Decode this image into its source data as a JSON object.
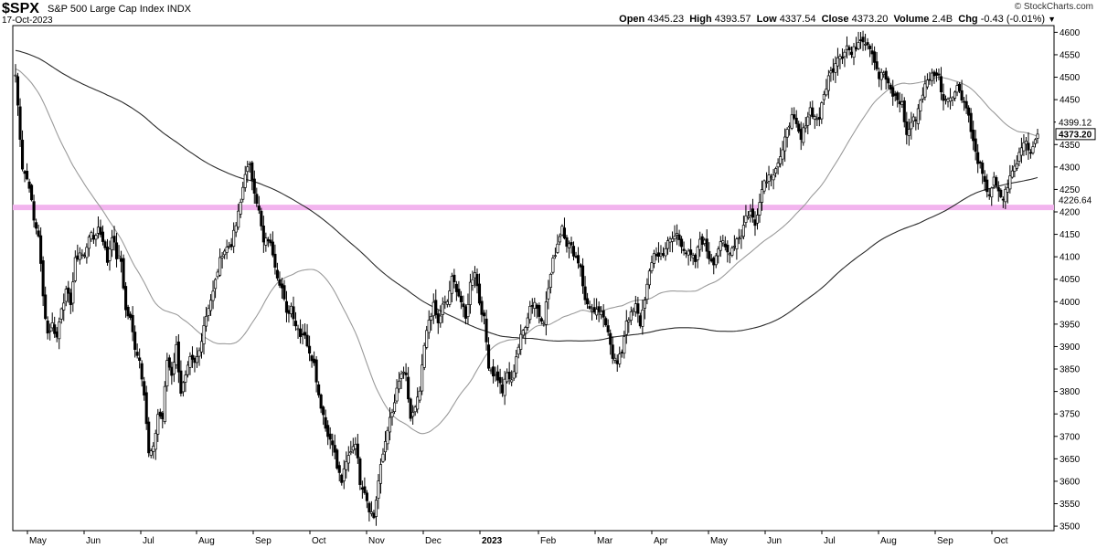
{
  "header": {
    "symbol": "$SPX",
    "name": "S&P 500 Large Cap Index",
    "exchange": "INDX",
    "date": "17-Oct-2023",
    "brand": "© StockCharts.com",
    "open_label": "Open",
    "open": "4345.23",
    "high_label": "High",
    "high": "4393.57",
    "low_label": "Low",
    "low": "4337.54",
    "close_label": "Close",
    "close": "4373.20",
    "volume_label": "Volume",
    "volume": "2.4B",
    "chg_label": "Chg",
    "chg": "-0.43 (-0.01%)",
    "chg_arrow": "▼"
  },
  "chart_data": {
    "type": "candlestick",
    "ylim": [
      3490,
      4615
    ],
    "y_ticks": [
      3500,
      3550,
      3600,
      3650,
      3700,
      3750,
      3800,
      3850,
      3900,
      3950,
      4000,
      4050,
      4100,
      4150,
      4200,
      4250,
      4300,
      4350,
      4400,
      4450,
      4500,
      4550,
      4600
    ],
    "x_labels": [
      "May",
      "Jun",
      "Jul",
      "Aug",
      "Sep",
      "Oct",
      "Nov",
      "Dec",
      "2023",
      "Feb",
      "Mar",
      "Apr",
      "May",
      "Jun",
      "Jul",
      "Aug",
      "Sep",
      "Oct"
    ],
    "x_label_bold": "2023",
    "horizontal_line": {
      "value": 4210,
      "color": "#f2b4ee"
    },
    "price_labels": [
      {
        "text": "4399.12",
        "value": 4399.12,
        "style": "plain"
      },
      {
        "text": "4373.20",
        "value": 4373.2,
        "style": "boxed"
      },
      {
        "text": "4226.64",
        "value": 4226.64,
        "style": "plain"
      }
    ],
    "series": [
      {
        "kind": "price",
        "color": "#000000",
        "points": [
          [
            0,
            4505
          ],
          [
            3,
            4300
          ],
          [
            6,
            4260
          ],
          [
            8,
            4180
          ],
          [
            10,
            4150
          ],
          [
            12,
            4010
          ],
          [
            14,
            3930
          ],
          [
            16,
            3950
          ],
          [
            18,
            3920
          ],
          [
            20,
            3990
          ],
          [
            22,
            4020
          ],
          [
            24,
            4000
          ],
          [
            26,
            4090
          ],
          [
            28,
            4110
          ],
          [
            30,
            4100
          ],
          [
            32,
            4150
          ],
          [
            34,
            4140
          ],
          [
            36,
            4165
          ],
          [
            38,
            4140
          ],
          [
            40,
            4090
          ],
          [
            42,
            4150
          ],
          [
            44,
            4100
          ],
          [
            46,
            4090
          ],
          [
            48,
            3980
          ],
          [
            50,
            3960
          ],
          [
            52,
            3900
          ],
          [
            54,
            3870
          ],
          [
            56,
            3800
          ],
          [
            58,
            3660
          ],
          [
            60,
            3670
          ],
          [
            62,
            3750
          ],
          [
            64,
            3740
          ],
          [
            66,
            3870
          ],
          [
            68,
            3840
          ],
          [
            70,
            3900
          ],
          [
            72,
            3800
          ],
          [
            74,
            3830
          ],
          [
            76,
            3870
          ],
          [
            78,
            3860
          ],
          [
            80,
            3890
          ],
          [
            82,
            3950
          ],
          [
            84,
            3990
          ],
          [
            86,
            4020
          ],
          [
            88,
            4070
          ],
          [
            90,
            4110
          ],
          [
            92,
            4120
          ],
          [
            94,
            4130
          ],
          [
            96,
            4170
          ],
          [
            98,
            4220
          ],
          [
            100,
            4290
          ],
          [
            102,
            4300
          ],
          [
            104,
            4250
          ],
          [
            106,
            4200
          ],
          [
            108,
            4130
          ],
          [
            110,
            4140
          ],
          [
            112,
            4110
          ],
          [
            114,
            4060
          ],
          [
            116,
            4030
          ],
          [
            118,
            3970
          ],
          [
            120,
            3990
          ],
          [
            122,
            3950
          ],
          [
            124,
            3930
          ],
          [
            126,
            3930
          ],
          [
            128,
            3880
          ],
          [
            130,
            3870
          ],
          [
            132,
            3790
          ],
          [
            134,
            3750
          ],
          [
            136,
            3700
          ],
          [
            138,
            3690
          ],
          [
            140,
            3630
          ],
          [
            142,
            3600
          ],
          [
            144,
            3640
          ],
          [
            146,
            3670
          ],
          [
            148,
            3690
          ],
          [
            150,
            3600
          ],
          [
            152,
            3580
          ],
          [
            154,
            3540
          ],
          [
            156,
            3520
          ],
          [
            158,
            3600
          ],
          [
            160,
            3660
          ],
          [
            162,
            3720
          ],
          [
            164,
            3750
          ],
          [
            166,
            3800
          ],
          [
            168,
            3840
          ],
          [
            170,
            3830
          ],
          [
            172,
            3740
          ],
          [
            174,
            3760
          ],
          [
            176,
            3800
          ],
          [
            178,
            3900
          ],
          [
            180,
            3960
          ],
          [
            182,
            3990
          ],
          [
            184,
            3950
          ],
          [
            186,
            3990
          ],
          [
            188,
            4000
          ],
          [
            190,
            4050
          ],
          [
            192,
            4030
          ],
          [
            194,
            4000
          ],
          [
            196,
            3960
          ],
          [
            198,
            4040
          ],
          [
            200,
            4070
          ],
          [
            202,
            4000
          ],
          [
            204,
            3960
          ],
          [
            206,
            3860
          ],
          [
            208,
            3840
          ],
          [
            210,
            3830
          ],
          [
            212,
            3800
          ],
          [
            214,
            3840
          ],
          [
            216,
            3820
          ],
          [
            218,
            3880
          ],
          [
            220,
            3920
          ],
          [
            222,
            3950
          ],
          [
            224,
            3990
          ],
          [
            226,
            4000
          ],
          [
            228,
            3970
          ],
          [
            230,
            3960
          ],
          [
            232,
            4030
          ],
          [
            234,
            4090
          ],
          [
            236,
            4130
          ],
          [
            238,
            4170
          ],
          [
            240,
            4130
          ],
          [
            242,
            4120
          ],
          [
            244,
            4100
          ],
          [
            246,
            4080
          ],
          [
            248,
            4000
          ],
          [
            250,
            3990
          ],
          [
            252,
            3970
          ],
          [
            254,
            3980
          ],
          [
            256,
            3960
          ],
          [
            258,
            3940
          ],
          [
            260,
            3880
          ],
          [
            262,
            3860
          ],
          [
            264,
            3890
          ],
          [
            266,
            3960
          ],
          [
            268,
            3970
          ],
          [
            270,
            3990
          ],
          [
            272,
            3950
          ],
          [
            274,
            4010
          ],
          [
            276,
            4060
          ],
          [
            278,
            4110
          ],
          [
            280,
            4100
          ],
          [
            282,
            4110
          ],
          [
            284,
            4130
          ],
          [
            286,
            4140
          ],
          [
            288,
            4150
          ],
          [
            290,
            4130
          ],
          [
            292,
            4110
          ],
          [
            294,
            4100
          ],
          [
            296,
            4090
          ],
          [
            298,
            4140
          ],
          [
            300,
            4130
          ],
          [
            302,
            4100
          ],
          [
            304,
            4090
          ],
          [
            306,
            4120
          ],
          [
            308,
            4130
          ],
          [
            310,
            4110
          ],
          [
            312,
            4120
          ],
          [
            314,
            4140
          ],
          [
            316,
            4150
          ],
          [
            318,
            4190
          ],
          [
            320,
            4200
          ],
          [
            322,
            4170
          ],
          [
            324,
            4230
          ],
          [
            326,
            4270
          ],
          [
            328,
            4280
          ],
          [
            330,
            4290
          ],
          [
            332,
            4310
          ],
          [
            334,
            4330
          ],
          [
            336,
            4390
          ],
          [
            338,
            4410
          ],
          [
            340,
            4390
          ],
          [
            342,
            4360
          ],
          [
            344,
            4400
          ],
          [
            346,
            4430
          ],
          [
            348,
            4410
          ],
          [
            350,
            4410
          ],
          [
            352,
            4460
          ],
          [
            354,
            4500
          ],
          [
            356,
            4520
          ],
          [
            358,
            4550
          ],
          [
            360,
            4550
          ],
          [
            362,
            4570
          ],
          [
            364,
            4550
          ],
          [
            366,
            4570
          ],
          [
            368,
            4590
          ],
          [
            370,
            4580
          ],
          [
            372,
            4570
          ],
          [
            374,
            4540
          ],
          [
            376,
            4500
          ],
          [
            378,
            4510
          ],
          [
            380,
            4480
          ],
          [
            382,
            4460
          ],
          [
            384,
            4450
          ],
          [
            386,
            4440
          ],
          [
            388,
            4370
          ],
          [
            390,
            4400
          ],
          [
            392,
            4410
          ],
          [
            394,
            4450
          ],
          [
            396,
            4480
          ],
          [
            398,
            4500
          ],
          [
            400,
            4510
          ],
          [
            402,
            4500
          ],
          [
            404,
            4450
          ],
          [
            406,
            4460
          ],
          [
            408,
            4450
          ],
          [
            410,
            4490
          ],
          [
            412,
            4450
          ],
          [
            414,
            4440
          ],
          [
            416,
            4380
          ],
          [
            418,
            4330
          ],
          [
            420,
            4300
          ],
          [
            422,
            4260
          ],
          [
            424,
            4240
          ],
          [
            426,
            4270
          ],
          [
            428,
            4240
          ],
          [
            430,
            4230
          ],
          [
            432,
            4260
          ],
          [
            434,
            4290
          ],
          [
            436,
            4310
          ],
          [
            438,
            4350
          ],
          [
            440,
            4360
          ],
          [
            442,
            4330
          ],
          [
            444,
            4370
          ],
          [
            445,
            4373.2
          ]
        ]
      },
      {
        "kind": "ma50",
        "color": "#9a9a9a"
      },
      {
        "kind": "ma200",
        "color": "#2b2b2b"
      }
    ]
  }
}
